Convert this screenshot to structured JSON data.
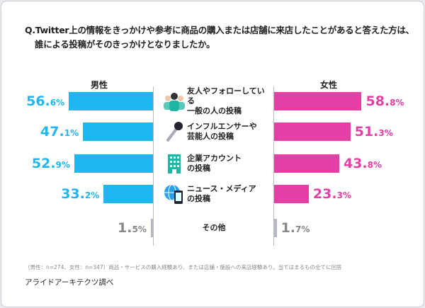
{
  "chart_data": {
    "type": "bar",
    "title": "Q.Twitter上の情報をきっかけや参考に商品の購入または店舗に来店したことがあると答えた方は、誰による投稿がそのきっかけとなりましたか。",
    "categories": [
      "友人やフォローしている\n一般の人の投稿",
      "インフルエンサーや\n芸能人の投稿",
      "企業アカウント\nの投稿",
      "ニュース・メディア\nの投稿",
      "その他"
    ],
    "category_icons": [
      "people-icon",
      "microphone-icon",
      "building-icon",
      "globe-phone-icon",
      ""
    ],
    "series": [
      {
        "name": "男性",
        "values": [
          56.6,
          47.1,
          52.9,
          33.2,
          1.5
        ],
        "color": "#1fb6ef"
      },
      {
        "name": "女性",
        "values": [
          58.8,
          51.3,
          43.8,
          23.3,
          1.7
        ],
        "color": "#e33fa5"
      }
    ],
    "other_color": "#b5b8c8",
    "unit": "%",
    "xlim": [
      0,
      60
    ]
  },
  "note": "（男性：n=274、女性：n=347）商品・サービスの購入経験あり、または店舗・施設への来店経験あり。当てはまるもの全てに回答",
  "source": "アライドアーキテクツ調べ"
}
